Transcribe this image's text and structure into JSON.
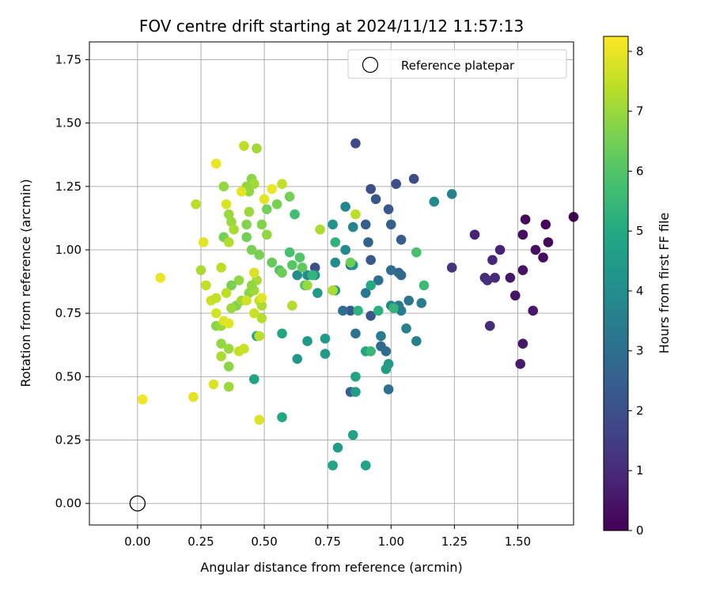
{
  "chart_data": {
    "type": "scatter",
    "title": "FOV centre drift starting at 2024/11/12 11:57:13",
    "xlabel": "Angular distance from reference (arcmin)",
    "ylabel": "Rotation from reference (arcmin)",
    "xlim": [
      -0.19,
      1.72
    ],
    "ylim": [
      -0.085,
      1.82
    ],
    "x_ticks": [
      "0.00",
      "0.25",
      "0.50",
      "0.75",
      "1.00",
      "1.25",
      "1.50"
    ],
    "y_ticks": [
      "0.00",
      "0.25",
      "0.50",
      "0.75",
      "1.00",
      "1.25",
      "1.50",
      "1.75"
    ],
    "grid": true,
    "legend": {
      "placement": "top-right",
      "entries": [
        "Reference platepar"
      ]
    },
    "reference_point": {
      "x": 0.0,
      "y": 0.0,
      "label": "Reference platepar"
    },
    "colorbar": {
      "label": "Hours from first FF file",
      "colormap": "viridis",
      "range": [
        0,
        8.25
      ],
      "ticks": [
        "0",
        "1",
        "2",
        "3",
        "4",
        "5",
        "6",
        "7",
        "8"
      ]
    },
    "points": [
      [
        1.72,
        1.13,
        0.1
      ],
      [
        1.61,
        1.1,
        0.15
      ],
      [
        1.62,
        1.03,
        0.2
      ],
      [
        1.53,
        1.12,
        0.2
      ],
      [
        1.52,
        1.06,
        0.3
      ],
      [
        1.57,
        1.0,
        0.35
      ],
      [
        1.6,
        0.97,
        0.25
      ],
      [
        1.52,
        0.92,
        0.4
      ],
      [
        1.47,
        0.89,
        0.5
      ],
      [
        1.49,
        0.82,
        0.45
      ],
      [
        1.56,
        0.76,
        0.55
      ],
      [
        1.52,
        0.63,
        0.5
      ],
      [
        1.51,
        0.55,
        0.6
      ],
      [
        1.33,
        1.06,
        0.8
      ],
      [
        1.43,
        1.0,
        0.8
      ],
      [
        1.4,
        0.96,
        0.9
      ],
      [
        1.41,
        0.89,
        1.0
      ],
      [
        1.37,
        0.89,
        1.0
      ],
      [
        1.38,
        0.88,
        1.1
      ],
      [
        1.39,
        0.7,
        1.0
      ],
      [
        1.24,
        0.93,
        1.2
      ],
      [
        0.86,
        1.42,
        1.8
      ],
      [
        1.09,
        1.28,
        1.9
      ],
      [
        1.02,
        1.26,
        2.0
      ],
      [
        0.92,
        1.24,
        2.0
      ],
      [
        0.94,
        1.2,
        2.2
      ],
      [
        0.99,
        1.16,
        2.3
      ],
      [
        0.9,
        1.1,
        2.4
      ],
      [
        1.0,
        1.1,
        2.5
      ],
      [
        1.04,
        1.04,
        2.4
      ],
      [
        0.91,
        1.03,
        2.6
      ],
      [
        0.7,
        0.93,
        2.0
      ],
      [
        0.84,
        0.94,
        2.6
      ],
      [
        0.92,
        0.96,
        2.3
      ],
      [
        1.03,
        0.91,
        2.7
      ],
      [
        1.04,
        0.9,
        2.8
      ],
      [
        0.95,
        0.88,
        3.0
      ],
      [
        1.0,
        0.92,
        2.9
      ],
      [
        0.9,
        0.83,
        3.2
      ],
      [
        0.84,
        0.76,
        2.3
      ],
      [
        0.81,
        0.76,
        3.0
      ],
      [
        0.86,
        0.67,
        3.1
      ],
      [
        0.96,
        0.66,
        3.5
      ],
      [
        0.96,
        0.62,
        2.8
      ],
      [
        0.98,
        0.6,
        2.9
      ],
      [
        0.99,
        0.45,
        3.0
      ],
      [
        0.84,
        0.44,
        2.5
      ],
      [
        0.92,
        0.74,
        2.2
      ],
      [
        1.03,
        0.78,
        3.3
      ],
      [
        1.04,
        0.76,
        3.5
      ],
      [
        1.07,
        0.8,
        3.2
      ],
      [
        1.12,
        0.79,
        3.4
      ],
      [
        1.06,
        0.69,
        3.6
      ],
      [
        1.1,
        0.64,
        3.6
      ],
      [
        1.0,
        0.78,
        3.8
      ],
      [
        1.24,
        1.22,
        3.6
      ],
      [
        1.17,
        1.19,
        3.9
      ],
      [
        0.82,
        1.17,
        3.8
      ],
      [
        0.85,
        1.09,
        3.7
      ],
      [
        0.77,
        1.1,
        4.2
      ],
      [
        0.82,
        1.0,
        3.9
      ],
      [
        0.85,
        0.94,
        4.2
      ],
      [
        0.78,
        0.95,
        4.0
      ],
      [
        0.63,
        0.9,
        4.0
      ],
      [
        0.67,
        0.9,
        4.0
      ],
      [
        0.7,
        0.9,
        4.2
      ],
      [
        0.78,
        0.84,
        4.5
      ],
      [
        0.71,
        0.83,
        4.5
      ],
      [
        0.99,
        0.55,
        4.4
      ],
      [
        0.98,
        0.53,
        4.6
      ],
      [
        0.86,
        0.44,
        4.6
      ],
      [
        0.86,
        0.5,
        4.8
      ],
      [
        0.9,
        0.6,
        4.9
      ],
      [
        0.92,
        0.86,
        5.0
      ],
      [
        0.95,
        0.76,
        5.2
      ],
      [
        0.87,
        0.76,
        5.3
      ],
      [
        0.74,
        0.65,
        4.5
      ],
      [
        0.74,
        0.59,
        4.5
      ],
      [
        0.67,
        0.64,
        4.4
      ],
      [
        0.63,
        0.57,
        4.4
      ],
      [
        0.79,
        0.22,
        4.5
      ],
      [
        0.77,
        0.15,
        4.8
      ],
      [
        0.9,
        0.15,
        4.7
      ],
      [
        0.85,
        0.27,
        4.7
      ],
      [
        0.57,
        0.67,
        4.8
      ],
      [
        0.57,
        0.34,
        4.9
      ],
      [
        0.47,
        0.66,
        4.7
      ],
      [
        0.46,
        0.49,
        4.8
      ],
      [
        1.01,
        0.77,
        5.4
      ],
      [
        1.13,
        0.86,
        5.6
      ],
      [
        1.1,
        0.99,
        5.8
      ],
      [
        0.92,
        0.6,
        5.5
      ],
      [
        0.78,
        1.03,
        5.3
      ],
      [
        0.69,
        0.9,
        5.4
      ],
      [
        0.62,
        1.14,
        5.7
      ],
      [
        0.6,
        0.99,
        5.8
      ],
      [
        0.66,
        0.86,
        5.9
      ],
      [
        0.64,
        0.97,
        6.0
      ],
      [
        0.61,
        0.94,
        6.1
      ],
      [
        0.65,
        0.93,
        6.2
      ],
      [
        0.56,
        0.92,
        6.0
      ],
      [
        0.53,
        0.95,
        6.3
      ],
      [
        0.57,
        0.91,
        6.4
      ],
      [
        0.6,
        1.21,
        6.5
      ],
      [
        0.55,
        1.18,
        6.6
      ],
      [
        0.51,
        1.16,
        6.5
      ],
      [
        0.49,
        1.1,
        6.7
      ],
      [
        0.51,
        1.06,
        6.9
      ],
      [
        0.48,
        0.98,
        6.6
      ],
      [
        0.45,
        1.0,
        6.6
      ],
      [
        0.43,
        1.05,
        6.5
      ],
      [
        0.43,
        1.1,
        6.7
      ],
      [
        0.44,
        1.15,
        7.0
      ],
      [
        0.44,
        1.23,
        6.9
      ],
      [
        0.45,
        1.28,
        6.8
      ],
      [
        0.46,
        1.26,
        7.1
      ],
      [
        0.43,
        1.25,
        6.9
      ],
      [
        0.44,
        0.83,
        6.8
      ],
      [
        0.46,
        0.84,
        7.1
      ],
      [
        0.47,
        0.88,
        7.2
      ],
      [
        0.45,
        0.86,
        6.9
      ],
      [
        0.4,
        0.88,
        6.9
      ],
      [
        0.37,
        0.86,
        6.6
      ],
      [
        0.39,
        0.78,
        6.7
      ],
      [
        0.37,
        0.77,
        7.0
      ],
      [
        0.41,
        0.8,
        7.1
      ],
      [
        0.35,
        0.83,
        7.4
      ],
      [
        0.33,
        0.63,
        6.9
      ],
      [
        0.36,
        0.61,
        7.0
      ],
      [
        0.36,
        0.54,
        6.8
      ],
      [
        0.33,
        0.58,
        7.2
      ],
      [
        0.31,
        0.7,
        6.8
      ],
      [
        0.33,
        0.7,
        7.0
      ],
      [
        0.36,
        0.46,
        7.0
      ],
      [
        0.47,
        1.4,
        7.1
      ],
      [
        0.42,
        1.41,
        7.4
      ],
      [
        0.34,
        1.25,
        6.9
      ],
      [
        0.36,
        1.14,
        7.0
      ],
      [
        0.37,
        1.11,
        7.0
      ],
      [
        0.38,
        1.08,
        7.2
      ],
      [
        0.34,
        1.05,
        6.5
      ],
      [
        0.36,
        1.03,
        7.3
      ],
      [
        0.33,
        0.93,
        7.4
      ],
      [
        0.27,
        0.86,
        7.5
      ],
      [
        0.25,
        0.92,
        7.2
      ],
      [
        0.23,
        1.18,
        7.4
      ],
      [
        0.29,
        0.8,
        7.6
      ],
      [
        0.31,
        0.81,
        7.5
      ],
      [
        0.31,
        0.75,
        7.7
      ],
      [
        0.34,
        0.72,
        7.8
      ],
      [
        0.36,
        0.71,
        7.9
      ],
      [
        0.3,
        0.47,
        7.8
      ],
      [
        0.22,
        0.42,
        7.9
      ],
      [
        0.02,
        0.41,
        8.1
      ],
      [
        0.09,
        0.89,
        8.0
      ],
      [
        0.26,
        1.03,
        7.9
      ],
      [
        0.31,
        1.34,
        8.0
      ],
      [
        0.35,
        1.18,
        7.8
      ],
      [
        0.41,
        1.23,
        7.9
      ],
      [
        0.4,
        0.6,
        7.5
      ],
      [
        0.42,
        0.61,
        7.6
      ],
      [
        0.48,
        0.66,
        7.4
      ],
      [
        0.49,
        0.73,
        7.3
      ],
      [
        0.48,
        0.8,
        7.5
      ],
      [
        0.49,
        0.78,
        7.2
      ],
      [
        0.46,
        0.75,
        7.6
      ],
      [
        0.43,
        0.8,
        7.7
      ],
      [
        0.46,
        0.91,
        7.8
      ],
      [
        0.49,
        0.81,
        7.9
      ],
      [
        0.48,
        0.33,
        7.8
      ],
      [
        0.5,
        1.2,
        7.9
      ],
      [
        0.53,
        1.24,
        8.0
      ],
      [
        0.57,
        1.26,
        7.5
      ],
      [
        0.72,
        1.08,
        7.2
      ],
      [
        0.61,
        0.78,
        7.3
      ],
      [
        0.67,
        0.86,
        7.0
      ],
      [
        0.77,
        0.84,
        7.2
      ],
      [
        0.86,
        1.14,
        7.4
      ],
      [
        0.84,
        0.95,
        6.4
      ]
    ]
  }
}
